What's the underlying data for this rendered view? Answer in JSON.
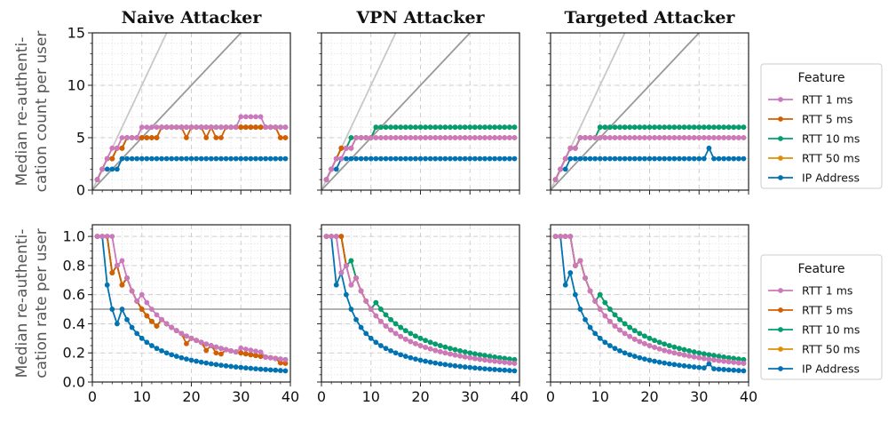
{
  "chart_data": {
    "type": "line",
    "column_titles": [
      "Naive Attacker",
      "VPN Attacker",
      "Targeted Attacker"
    ],
    "row_ylabels": [
      [
        "Median re-authenti-",
        "cation count per user"
      ],
      [
        "Median re-authenti-",
        "cation rate per user"
      ]
    ],
    "xlim": [
      0,
      40
    ],
    "xticks": [
      0,
      10,
      20,
      30,
      40
    ],
    "rows": [
      {
        "ylim": [
          0,
          15
        ],
        "yticks": [
          0,
          5,
          10,
          15
        ]
      },
      {
        "ylim": [
          0,
          1.08
        ],
        "yticks": [
          0.0,
          0.2,
          0.4,
          0.6,
          0.8,
          1.0
        ]
      }
    ],
    "legend": {
      "title": "Feature",
      "placement": "right",
      "entries": [
        {
          "name": "RTT 1 ms",
          "color": "#cc78bc"
        },
        {
          "name": "RTT 5 ms",
          "color": "#d55e00"
        },
        {
          "name": "RTT 10 ms",
          "color": "#029e73"
        },
        {
          "name": "RTT 50 ms",
          "color": "#de8f05"
        },
        {
          "name": "IP Address",
          "color": "#0173b2"
        }
      ]
    },
    "x": [
      1,
      2,
      3,
      4,
      5,
      6,
      7,
      8,
      9,
      10,
      11,
      12,
      13,
      14,
      15,
      16,
      17,
      18,
      19,
      20,
      21,
      22,
      23,
      24,
      25,
      26,
      27,
      28,
      29,
      30,
      31,
      32,
      33,
      34,
      35,
      36,
      37,
      38,
      39
    ],
    "panels": [
      {
        "column": "Naive Attacker",
        "counts": {
          "RTT 1 ms": [
            1,
            2,
            3,
            4,
            4,
            5,
            5,
            5,
            5,
            6,
            6,
            6,
            6,
            6,
            6,
            6,
            6,
            6,
            6,
            6,
            6,
            6,
            6,
            6,
            6,
            6,
            6,
            6,
            6,
            7,
            7,
            7,
            7,
            7,
            6,
            6,
            6,
            6,
            6
          ],
          "RTT 5 ms": [
            1,
            2,
            3,
            3,
            4,
            4,
            5,
            5,
            5,
            5,
            5,
            5,
            5,
            6,
            6,
            6,
            6,
            6,
            5,
            6,
            6,
            6,
            5,
            6,
            5,
            5,
            6,
            6,
            6,
            6,
            6,
            6,
            6,
            6,
            6,
            6,
            6,
            5,
            5
          ],
          "RTT 10 ms": [
            1,
            2,
            3,
            3,
            4,
            4,
            5,
            5,
            5,
            5,
            5,
            5,
            5,
            6,
            6,
            6,
            6,
            6,
            6,
            6,
            6,
            6,
            6,
            6,
            6,
            6,
            6,
            6,
            6,
            6,
            6,
            6,
            6,
            6,
            6,
            6,
            6,
            6,
            6
          ],
          "RTT 50 ms": [
            1,
            2,
            3,
            3,
            4,
            4,
            5,
            5,
            5,
            5,
            5,
            5,
            5,
            6,
            6,
            6,
            6,
            6,
            6,
            6,
            6,
            6,
            6,
            6,
            6,
            6,
            6,
            6,
            6,
            6,
            6,
            6,
            6,
            6,
            6,
            6,
            6,
            5,
            5
          ],
          "IP Address": [
            1,
            2,
            2,
            2,
            2,
            3,
            3,
            3,
            3,
            3,
            3,
            3,
            3,
            3,
            3,
            3,
            3,
            3,
            3,
            3,
            3,
            3,
            3,
            3,
            3,
            3,
            3,
            3,
            3,
            3,
            3,
            3,
            3,
            3,
            3,
            3,
            3,
            3,
            3
          ]
        }
      },
      {
        "column": "VPN Attacker",
        "counts": {
          "RTT 1 ms": [
            1,
            2,
            3,
            3,
            4,
            4,
            5,
            5,
            5,
            5,
            5,
            5,
            5,
            5,
            5,
            5,
            5,
            5,
            5,
            5,
            5,
            5,
            5,
            5,
            5,
            5,
            5,
            5,
            5,
            5,
            5,
            5,
            5,
            5,
            5,
            5,
            5,
            5,
            5
          ],
          "RTT 5 ms": [
            1,
            2,
            3,
            4,
            4,
            4,
            5,
            5,
            5,
            5,
            5,
            5,
            5,
            5,
            5,
            5,
            5,
            5,
            5,
            5,
            5,
            5,
            5,
            5,
            5,
            5,
            5,
            5,
            5,
            5,
            5,
            5,
            5,
            5,
            5,
            5,
            5,
            5,
            5
          ],
          "RTT 10 ms": [
            1,
            2,
            3,
            4,
            4,
            5,
            5,
            5,
            5,
            5,
            6,
            6,
            6,
            6,
            6,
            6,
            6,
            6,
            6,
            6,
            6,
            6,
            6,
            6,
            6,
            6,
            6,
            6,
            6,
            6,
            6,
            6,
            6,
            6,
            6,
            6,
            6,
            6,
            6
          ],
          "RTT 50 ms": [
            1,
            2,
            3,
            4,
            4,
            5,
            5,
            5,
            5,
            5,
            6,
            6,
            6,
            6,
            6,
            6,
            6,
            6,
            6,
            6,
            6,
            6,
            6,
            6,
            6,
            6,
            6,
            6,
            6,
            6,
            6,
            6,
            6,
            6,
            6,
            6,
            6,
            6,
            6
          ],
          "IP Address": [
            1,
            2,
            2,
            3,
            3,
            3,
            3,
            3,
            3,
            3,
            3,
            3,
            3,
            3,
            3,
            3,
            3,
            3,
            3,
            3,
            3,
            3,
            3,
            3,
            3,
            3,
            3,
            3,
            3,
            3,
            3,
            3,
            3,
            3,
            3,
            3,
            3,
            3,
            3
          ]
        }
      },
      {
        "column": "Targeted Attacker",
        "counts": {
          "RTT 1 ms": [
            1,
            2,
            3,
            4,
            4,
            5,
            5,
            5,
            5,
            5,
            5,
            5,
            5,
            5,
            5,
            5,
            5,
            5,
            5,
            5,
            5,
            5,
            5,
            5,
            5,
            5,
            5,
            5,
            5,
            5,
            5,
            5,
            5,
            5,
            5,
            5,
            5,
            5,
            5
          ],
          "RTT 5 ms": [
            1,
            2,
            3,
            4,
            4,
            5,
            5,
            5,
            5,
            5,
            5,
            5,
            5,
            5,
            5,
            5,
            5,
            5,
            5,
            5,
            5,
            5,
            5,
            5,
            5,
            5,
            5,
            5,
            5,
            5,
            5,
            5,
            5,
            5,
            5,
            5,
            5,
            5,
            5
          ],
          "RTT 10 ms": [
            1,
            2,
            3,
            4,
            4,
            5,
            5,
            5,
            5,
            6,
            6,
            6,
            6,
            6,
            6,
            6,
            6,
            6,
            6,
            6,
            6,
            6,
            6,
            6,
            6,
            6,
            6,
            6,
            6,
            6,
            6,
            6,
            6,
            6,
            6,
            6,
            6,
            6,
            6
          ],
          "RTT 50 ms": [
            1,
            2,
            3,
            4,
            4,
            5,
            5,
            5,
            5,
            6,
            6,
            6,
            6,
            6,
            6,
            6,
            6,
            6,
            6,
            6,
            6,
            6,
            6,
            6,
            6,
            6,
            6,
            6,
            6,
            6,
            6,
            6,
            6,
            6,
            6,
            6,
            6,
            6,
            6
          ],
          "IP Address": [
            1,
            2,
            2,
            3,
            3,
            3,
            3,
            3,
            3,
            3,
            3,
            3,
            3,
            3,
            3,
            3,
            3,
            3,
            3,
            3,
            3,
            3,
            3,
            3,
            3,
            3,
            3,
            3,
            3,
            3,
            3,
            4,
            3,
            3,
            3,
            3,
            3,
            3,
            3
          ]
        }
      }
    ],
    "grid": true,
    "reference_lines": {
      "count_row": [
        "y = x",
        "y = x/2"
      ],
      "rate_row": [
        0.5
      ]
    }
  }
}
